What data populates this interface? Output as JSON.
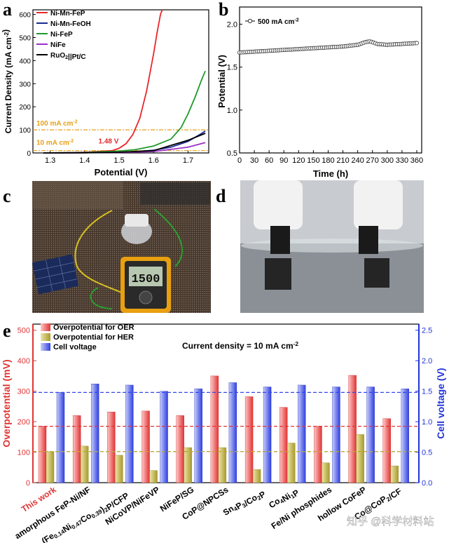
{
  "panels": {
    "a": "a",
    "b": "b",
    "c": "c",
    "d": "d",
    "e": "e"
  },
  "colors": {
    "red": "#e8262b",
    "navy": "#1c2b8f",
    "green": "#1e9a2a",
    "purple": "#9b30c8",
    "black": "#000000",
    "orange": "#e8a018",
    "oer": "#e03535",
    "her": "#b8a838",
    "cell": "#3546e6",
    "axis_right": "#2234d8"
  },
  "chart_data": [
    {
      "type": "line",
      "panel": "a",
      "xlabel": "Potential (V)",
      "ylabel": "Current Density (mA cm-2)",
      "xlim": [
        1.25,
        1.76
      ],
      "ylim": [
        0,
        620
      ],
      "xticks": [
        "1.3",
        "1.4",
        "1.5",
        "1.6",
        "1.7"
      ],
      "yticks": [
        "0",
        "100",
        "200",
        "300",
        "400",
        "500",
        "600"
      ],
      "legend": [
        "Ni-Mn-FeP",
        "Ni-Mn-FeOH",
        "Ni-FeP",
        "NiFe",
        "RuO2||Pt/C"
      ],
      "series": [
        {
          "name": "Ni-Mn-FeP",
          "color": "#e8262b",
          "x": [
            1.28,
            1.35,
            1.4,
            1.45,
            1.48,
            1.5,
            1.52,
            1.54,
            1.56,
            1.58,
            1.6,
            1.61,
            1.62,
            1.625
          ],
          "y": [
            0,
            1,
            3,
            7,
            10,
            20,
            40,
            80,
            150,
            270,
            430,
            520,
            600,
            620
          ]
        },
        {
          "name": "Ni-Mn-FeOH",
          "color": "#1c2b8f",
          "x": [
            1.28,
            1.4,
            1.5,
            1.55,
            1.6,
            1.65,
            1.7,
            1.74,
            1.75
          ],
          "y": [
            0,
            1,
            3,
            6,
            12,
            25,
            50,
            85,
            95
          ]
        },
        {
          "name": "Ni-FeP",
          "color": "#1e9a2a",
          "x": [
            1.28,
            1.4,
            1.5,
            1.55,
            1.6,
            1.65,
            1.68,
            1.7,
            1.72,
            1.74,
            1.75
          ],
          "y": [
            0,
            2,
            8,
            15,
            30,
            60,
            110,
            170,
            240,
            320,
            355
          ]
        },
        {
          "name": "NiFe",
          "color": "#9b30c8",
          "x": [
            1.28,
            1.4,
            1.5,
            1.6,
            1.7,
            1.75
          ],
          "y": [
            0,
            1,
            2,
            6,
            25,
            45
          ]
        },
        {
          "name": "RuO2||Pt/C",
          "color": "#000000",
          "x": [
            1.28,
            1.4,
            1.5,
            1.6,
            1.7,
            1.75
          ],
          "y": [
            0,
            1,
            3,
            10,
            55,
            85
          ]
        }
      ],
      "annotations": {
        "ref100": "100 mA cm-2",
        "ref10": "10 mA cm-2",
        "v148": "1.48 V"
      }
    },
    {
      "type": "line",
      "panel": "b",
      "xlabel": "Time (h)",
      "ylabel": "Potential (V)",
      "xlim": [
        0,
        370
      ],
      "ylim": [
        0.5,
        2.2
      ],
      "xticks": [
        "0",
        "30",
        "60",
        "90",
        "120",
        "150",
        "180",
        "210",
        "240",
        "270",
        "300",
        "330",
        "360"
      ],
      "yticks": [
        "0.5",
        "1.0",
        "1.5",
        "2.0"
      ],
      "legend": [
        "500 mA cm-2"
      ],
      "series": [
        {
          "name": "500 mA cm-2",
          "color": "#000000",
          "x": [
            0,
            30,
            60,
            90,
            120,
            150,
            180,
            210,
            240,
            255,
            265,
            280,
            300,
            330,
            360
          ],
          "y": [
            1.67,
            1.68,
            1.69,
            1.7,
            1.71,
            1.72,
            1.73,
            1.74,
            1.76,
            1.79,
            1.8,
            1.77,
            1.76,
            1.77,
            1.78
          ]
        }
      ]
    },
    {
      "type": "bar",
      "panel": "e",
      "ylabel": "Overpotential (mV)",
      "y2label": "Cell voltage (V)",
      "ylim": [
        0,
        520
      ],
      "y2lim": [
        0,
        2.6
      ],
      "yticks": [
        "0",
        "100",
        "200",
        "300",
        "400",
        "500"
      ],
      "y2ticks": [
        "0.0",
        "0.5",
        "1.0",
        "1.5",
        "2.0",
        "2.5"
      ],
      "title": "Current density = 10 mA cm-2",
      "legend": [
        "Overpotential for OER",
        "Overpotential for HER",
        "Cell voltage"
      ],
      "categories": [
        "This work",
        "amorphous FeP-Ni/NF",
        "(Fe0.14Ni0.47Co0.39)2P/CFP",
        "NiCoVP/NiFeVP",
        "NiFeP/SG",
        "CoP@NPCSs",
        "Sn4P3/Co2P",
        "Co4Ni1P",
        "Fe/Ni phosphides",
        "hollow CoFeP",
        "Co@CoP2/CF"
      ],
      "series": [
        {
          "name": "Overpotential for OER",
          "values": [
            185,
            220,
            232,
            235,
            220,
            350,
            282,
            247,
            185,
            352,
            210
          ]
        },
        {
          "name": "Overpotential for HER",
          "values": [
            102,
            120,
            90,
            40,
            115,
            115,
            43,
            130,
            65,
            158,
            55
          ]
        },
        {
          "name": "Cell voltage",
          "values": [
            1.48,
            1.62,
            1.6,
            1.5,
            1.54,
            1.64,
            1.57,
            1.6,
            1.57,
            1.57,
            1.54
          ]
        }
      ],
      "ref_lines": {
        "oer": 185,
        "her": 102,
        "cell": 1.48
      }
    }
  ],
  "photo_c": {
    "multimeter": "1500"
  },
  "watermark": "知乎 @科学材料站"
}
